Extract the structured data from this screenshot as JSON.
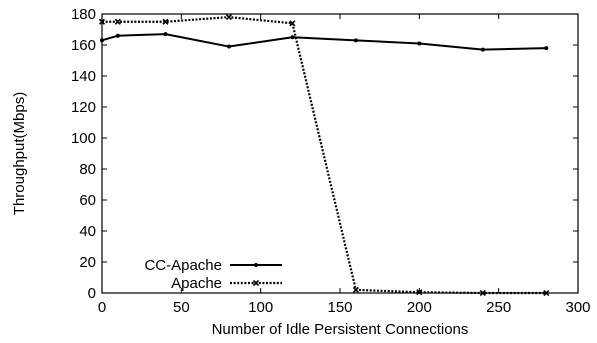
{
  "chart_data": {
    "type": "line",
    "title": "",
    "xlabel": "Number of Idle Persistent Connections",
    "ylabel": "Throughput(Mbps)",
    "xlim": [
      0,
      300
    ],
    "ylim": [
      0,
      180
    ],
    "xticks": [
      0,
      50,
      100,
      150,
      200,
      250,
      300
    ],
    "yticks": [
      0,
      20,
      40,
      60,
      80,
      100,
      120,
      140,
      160,
      180
    ],
    "grid": false,
    "legend_position": "bottom-left",
    "series": [
      {
        "name": "CC-Apache",
        "style": "solid",
        "color": "#000000",
        "x": [
          0,
          10,
          40,
          80,
          120,
          160,
          200,
          240,
          280
        ],
        "y": [
          163,
          166,
          167,
          159,
          165,
          163,
          161,
          157,
          158
        ]
      },
      {
        "name": "Apache",
        "style": "dotted",
        "color": "#000000",
        "x": [
          0,
          10,
          40,
          80,
          120,
          160,
          200,
          240,
          280
        ],
        "y": [
          175,
          175,
          175,
          178,
          174,
          2,
          0.5,
          0,
          0
        ]
      }
    ]
  }
}
